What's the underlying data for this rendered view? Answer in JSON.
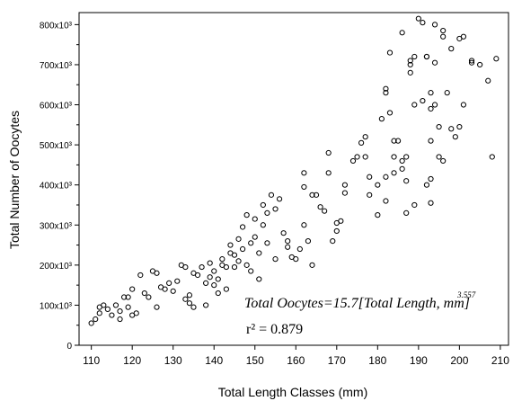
{
  "chart_data": {
    "type": "scatter",
    "xlabel": "Total Length Classes (mm)",
    "ylabel": "Total Number of Oocytes",
    "xlim": [
      107,
      212
    ],
    "ylim": [
      0,
      830000
    ],
    "xticks": [
      110,
      120,
      130,
      140,
      150,
      160,
      170,
      180,
      190,
      200,
      210
    ],
    "xtick_labels": [
      "110",
      "120",
      "130",
      "140",
      "150",
      "160",
      "170",
      "180",
      "190",
      "200",
      "210"
    ],
    "yticks": [
      0,
      100000,
      200000,
      300000,
      400000,
      500000,
      600000,
      700000,
      800000
    ],
    "ytick_labels": [
      "0",
      "100x10³",
      "200x10³",
      "300x10³",
      "400x10³",
      "500x10³",
      "600x10³",
      "700x10³",
      "800x10³"
    ],
    "grid": false,
    "legend": "none",
    "marker": "open-circle",
    "equation": {
      "prefix": "Total Oocytes=15.7",
      "bracket_text": "Total Length, mm",
      "exponent": "3.557",
      "coef": 15.7,
      "exp": 3.557,
      "r2_label": "r² = 0.879"
    },
    "series": [
      {
        "kind": "points",
        "points": [
          [
            110,
            55000
          ],
          [
            111,
            65000
          ],
          [
            112,
            80000
          ],
          [
            112,
            95000
          ],
          [
            113,
            100000
          ],
          [
            114,
            90000
          ],
          [
            115,
            75000
          ],
          [
            116,
            100000
          ],
          [
            117,
            85000
          ],
          [
            117,
            65000
          ],
          [
            118,
            120000
          ],
          [
            119,
            95000
          ],
          [
            119,
            120000
          ],
          [
            120,
            75000
          ],
          [
            120,
            140000
          ],
          [
            121,
            80000
          ],
          [
            122,
            175000
          ],
          [
            123,
            130000
          ],
          [
            124,
            120000
          ],
          [
            125,
            185000
          ],
          [
            126,
            180000
          ],
          [
            126,
            95000
          ],
          [
            127,
            145000
          ],
          [
            128,
            140000
          ],
          [
            129,
            155000
          ],
          [
            130,
            135000
          ],
          [
            131,
            160000
          ],
          [
            132,
            200000
          ],
          [
            133,
            195000
          ],
          [
            133,
            115000
          ],
          [
            134,
            125000
          ],
          [
            134,
            105000
          ],
          [
            135,
            180000
          ],
          [
            135,
            95000
          ],
          [
            136,
            175000
          ],
          [
            137,
            195000
          ],
          [
            138,
            155000
          ],
          [
            138,
            100000
          ],
          [
            139,
            205000
          ],
          [
            139,
            170000
          ],
          [
            140,
            185000
          ],
          [
            140,
            150000
          ],
          [
            141,
            165000
          ],
          [
            141,
            130000
          ],
          [
            142,
            200000
          ],
          [
            142,
            215000
          ],
          [
            143,
            195000
          ],
          [
            143,
            140000
          ],
          [
            144,
            250000
          ],
          [
            144,
            230000
          ],
          [
            145,
            225000
          ],
          [
            145,
            195000
          ],
          [
            146,
            265000
          ],
          [
            146,
            210000
          ],
          [
            147,
            240000
          ],
          [
            147,
            295000
          ],
          [
            148,
            325000
          ],
          [
            148,
            200000
          ],
          [
            149,
            255000
          ],
          [
            149,
            185000
          ],
          [
            150,
            315000
          ],
          [
            150,
            270000
          ],
          [
            151,
            230000
          ],
          [
            151,
            165000
          ],
          [
            152,
            300000
          ],
          [
            152,
            350000
          ],
          [
            153,
            255000
          ],
          [
            153,
            330000
          ],
          [
            154,
            375000
          ],
          [
            155,
            340000
          ],
          [
            155,
            215000
          ],
          [
            156,
            365000
          ],
          [
            157,
            280000
          ],
          [
            158,
            260000
          ],
          [
            158,
            245000
          ],
          [
            159,
            220000
          ],
          [
            160,
            215000
          ],
          [
            161,
            240000
          ],
          [
            162,
            300000
          ],
          [
            162,
            395000
          ],
          [
            162,
            430000
          ],
          [
            163,
            260000
          ],
          [
            164,
            200000
          ],
          [
            164,
            375000
          ],
          [
            165,
            375000
          ],
          [
            166,
            345000
          ],
          [
            167,
            335000
          ],
          [
            168,
            430000
          ],
          [
            168,
            480000
          ],
          [
            169,
            260000
          ],
          [
            170,
            285000
          ],
          [
            170,
            305000
          ],
          [
            171,
            310000
          ],
          [
            172,
            380000
          ],
          [
            172,
            400000
          ],
          [
            174,
            460000
          ],
          [
            175,
            470000
          ],
          [
            176,
            505000
          ],
          [
            177,
            520000
          ],
          [
            177,
            470000
          ],
          [
            178,
            375000
          ],
          [
            178,
            420000
          ],
          [
            180,
            325000
          ],
          [
            180,
            400000
          ],
          [
            181,
            565000
          ],
          [
            182,
            360000
          ],
          [
            182,
            420000
          ],
          [
            182,
            640000
          ],
          [
            182,
            630000
          ],
          [
            183,
            730000
          ],
          [
            183,
            580000
          ],
          [
            184,
            470000
          ],
          [
            184,
            510000
          ],
          [
            184,
            430000
          ],
          [
            185,
            510000
          ],
          [
            186,
            440000
          ],
          [
            186,
            780000
          ],
          [
            186,
            460000
          ],
          [
            187,
            410000
          ],
          [
            187,
            330000
          ],
          [
            187,
            470000
          ],
          [
            188,
            680000
          ],
          [
            188,
            700000
          ],
          [
            188,
            710000
          ],
          [
            189,
            720000
          ],
          [
            189,
            600000
          ],
          [
            189,
            350000
          ],
          [
            190,
            815000
          ],
          [
            191,
            610000
          ],
          [
            191,
            805000
          ],
          [
            192,
            720000
          ],
          [
            192,
            720000
          ],
          [
            192,
            400000
          ],
          [
            193,
            510000
          ],
          [
            193,
            590000
          ],
          [
            193,
            630000
          ],
          [
            193,
            415000
          ],
          [
            193,
            355000
          ],
          [
            194,
            600000
          ],
          [
            194,
            800000
          ],
          [
            194,
            705000
          ],
          [
            195,
            470000
          ],
          [
            195,
            545000
          ],
          [
            196,
            785000
          ],
          [
            196,
            770000
          ],
          [
            196,
            460000
          ],
          [
            197,
            630000
          ],
          [
            198,
            740000
          ],
          [
            198,
            540000
          ],
          [
            199,
            520000
          ],
          [
            200,
            545000
          ],
          [
            200,
            765000
          ],
          [
            201,
            600000
          ],
          [
            201,
            770000
          ],
          [
            203,
            710000
          ],
          [
            203,
            705000
          ],
          [
            205,
            700000
          ],
          [
            207,
            660000
          ],
          [
            208,
            470000
          ],
          [
            209,
            715000
          ]
        ]
      },
      {
        "kind": "fit-curve",
        "x_start": 110,
        "x_end": 212
      }
    ]
  }
}
